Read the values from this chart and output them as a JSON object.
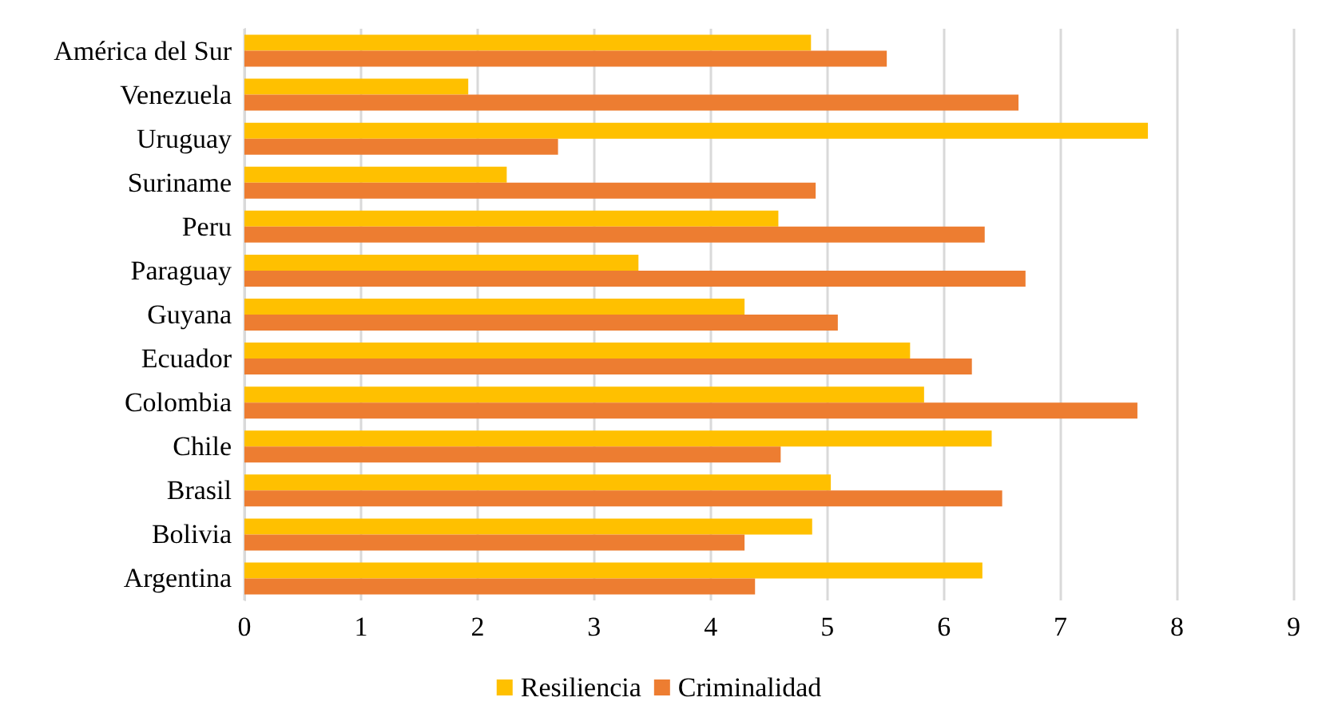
{
  "chart_data": {
    "type": "bar",
    "orientation": "horizontal",
    "categories": [
      "América del Sur",
      "Venezuela",
      "Uruguay",
      "Suriname",
      "Peru",
      "Paraguay",
      "Guyana",
      "Ecuador",
      "Colombia",
      "Chile",
      "Brasil",
      "Bolivia",
      "Argentina"
    ],
    "series": [
      {
        "name": "Resiliencia",
        "color": "#ffc000",
        "values": [
          4.86,
          1.92,
          7.75,
          2.25,
          4.58,
          3.38,
          4.29,
          5.71,
          5.83,
          6.41,
          5.03,
          4.87,
          6.33
        ]
      },
      {
        "name": "Criminalidad",
        "color": "#ed7d31",
        "values": [
          5.51,
          6.64,
          2.69,
          4.9,
          6.35,
          6.7,
          5.09,
          6.24,
          7.66,
          4.6,
          6.5,
          4.29,
          4.38
        ]
      }
    ],
    "xlim": [
      0,
      9
    ],
    "xticks": [
      0,
      1,
      2,
      3,
      4,
      5,
      6,
      7,
      8,
      9
    ],
    "grid": "x",
    "legend": "bottom"
  }
}
